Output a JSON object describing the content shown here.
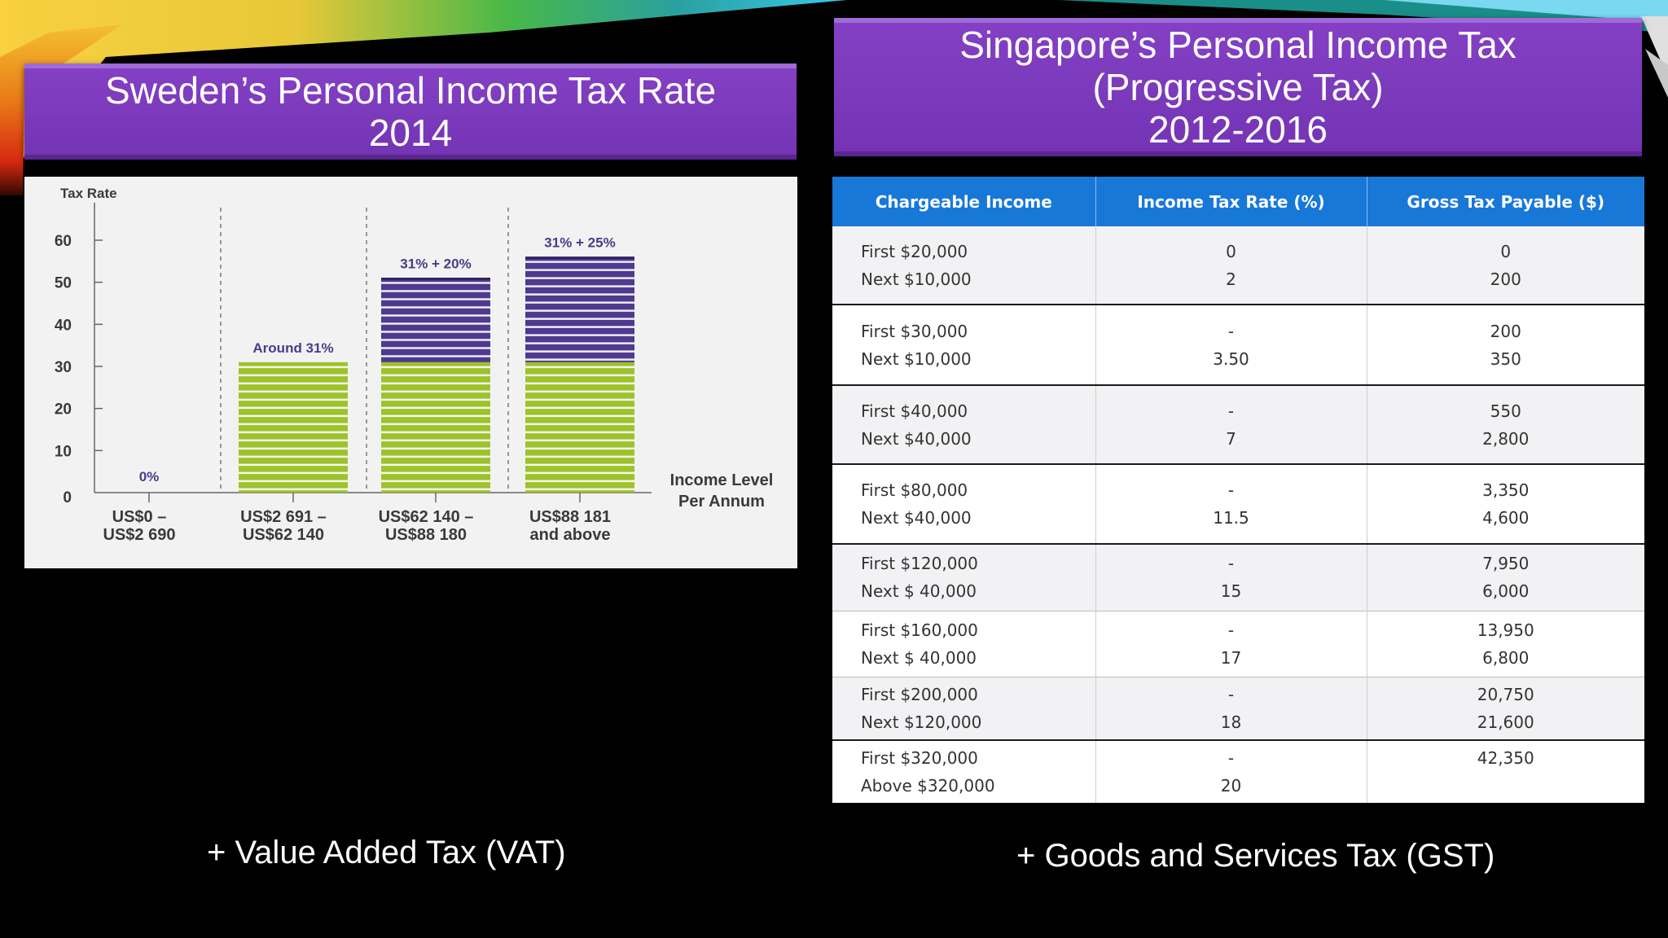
{
  "left_title": {
    "line1": "Sweden’s Personal Income Tax Rate",
    "line2": "2014"
  },
  "right_title": {
    "line1": "Singapore’s Personal Income Tax",
    "line2": "(Progressive Tax)",
    "line3": "2012-2016"
  },
  "chart_data": {
    "type": "bar",
    "ylabel": "Tax Rate",
    "xlabel_lines": [
      "Income Level",
      "Per Annum"
    ],
    "ylim": [
      0,
      60
    ],
    "yticks": [
      "0",
      "10",
      "20",
      "30",
      "40",
      "50",
      "60"
    ],
    "categories": [
      [
        "US$0 –",
        "US$2 690"
      ],
      [
        "US$2 691 –",
        "US$62 140"
      ],
      [
        "US$62 140 –",
        "US$88 180"
      ],
      [
        "US$88 181",
        "and above"
      ]
    ],
    "series": [
      {
        "values": [
          0,
          31,
          31,
          31
        ],
        "color": "#9ec22c"
      },
      {
        "values": [
          0,
          0,
          20,
          25
        ],
        "color": "#4e3a8e"
      }
    ],
    "bar_labels": [
      "0%",
      "Around 31%",
      "31% + 20%",
      "31% + 25%"
    ],
    "grid": false
  },
  "table": {
    "headers": [
      "Chargeable Income",
      "Income Tax Rate (%)",
      "Gross Tax Payable ($)"
    ],
    "rows": [
      {
        "income": [
          "First $20,000",
          "Next $10,000"
        ],
        "rate": [
          "0",
          "2"
        ],
        "payable": [
          "0",
          "200"
        ]
      },
      {
        "income": [
          "First $30,000",
          "Next $10,000"
        ],
        "rate": [
          "-",
          "3.50"
        ],
        "payable": [
          "200",
          "350"
        ]
      },
      {
        "income": [
          "First $40,000",
          "Next $40,000"
        ],
        "rate": [
          "-",
          "7"
        ],
        "payable": [
          "550",
          "2,800"
        ]
      },
      {
        "income": [
          "First $80,000",
          "Next $40,000"
        ],
        "rate": [
          "-",
          "11.5"
        ],
        "payable": [
          "3,350",
          "4,600"
        ]
      },
      {
        "income": [
          "First $120,000",
          "Next $ 40,000"
        ],
        "rate": [
          "-",
          "15"
        ],
        "payable": [
          "7,950",
          "6,000"
        ]
      },
      {
        "income": [
          "First $160,000",
          "Next $ 40,000"
        ],
        "rate": [
          "-",
          "17"
        ],
        "payable": [
          "13,950",
          "6,800"
        ]
      },
      {
        "income": [
          "First $200,000",
          "Next $120,000"
        ],
        "rate": [
          "-",
          "18"
        ],
        "payable": [
          "20,750",
          "21,600"
        ]
      },
      {
        "income": [
          "First $320,000",
          "Above $320,000"
        ],
        "rate": [
          "-",
          "20"
        ],
        "payable": [
          "42,350",
          ""
        ]
      }
    ]
  },
  "footnotes": {
    "left": "+ Value Added Tax (VAT)",
    "right": "+ Goods and Services Tax (GST)"
  },
  "colors": {
    "banner": "#7a38bc",
    "header_blue": "#1878d8",
    "bar_green": "#9ec22c",
    "bar_purple": "#4e3a8e"
  }
}
